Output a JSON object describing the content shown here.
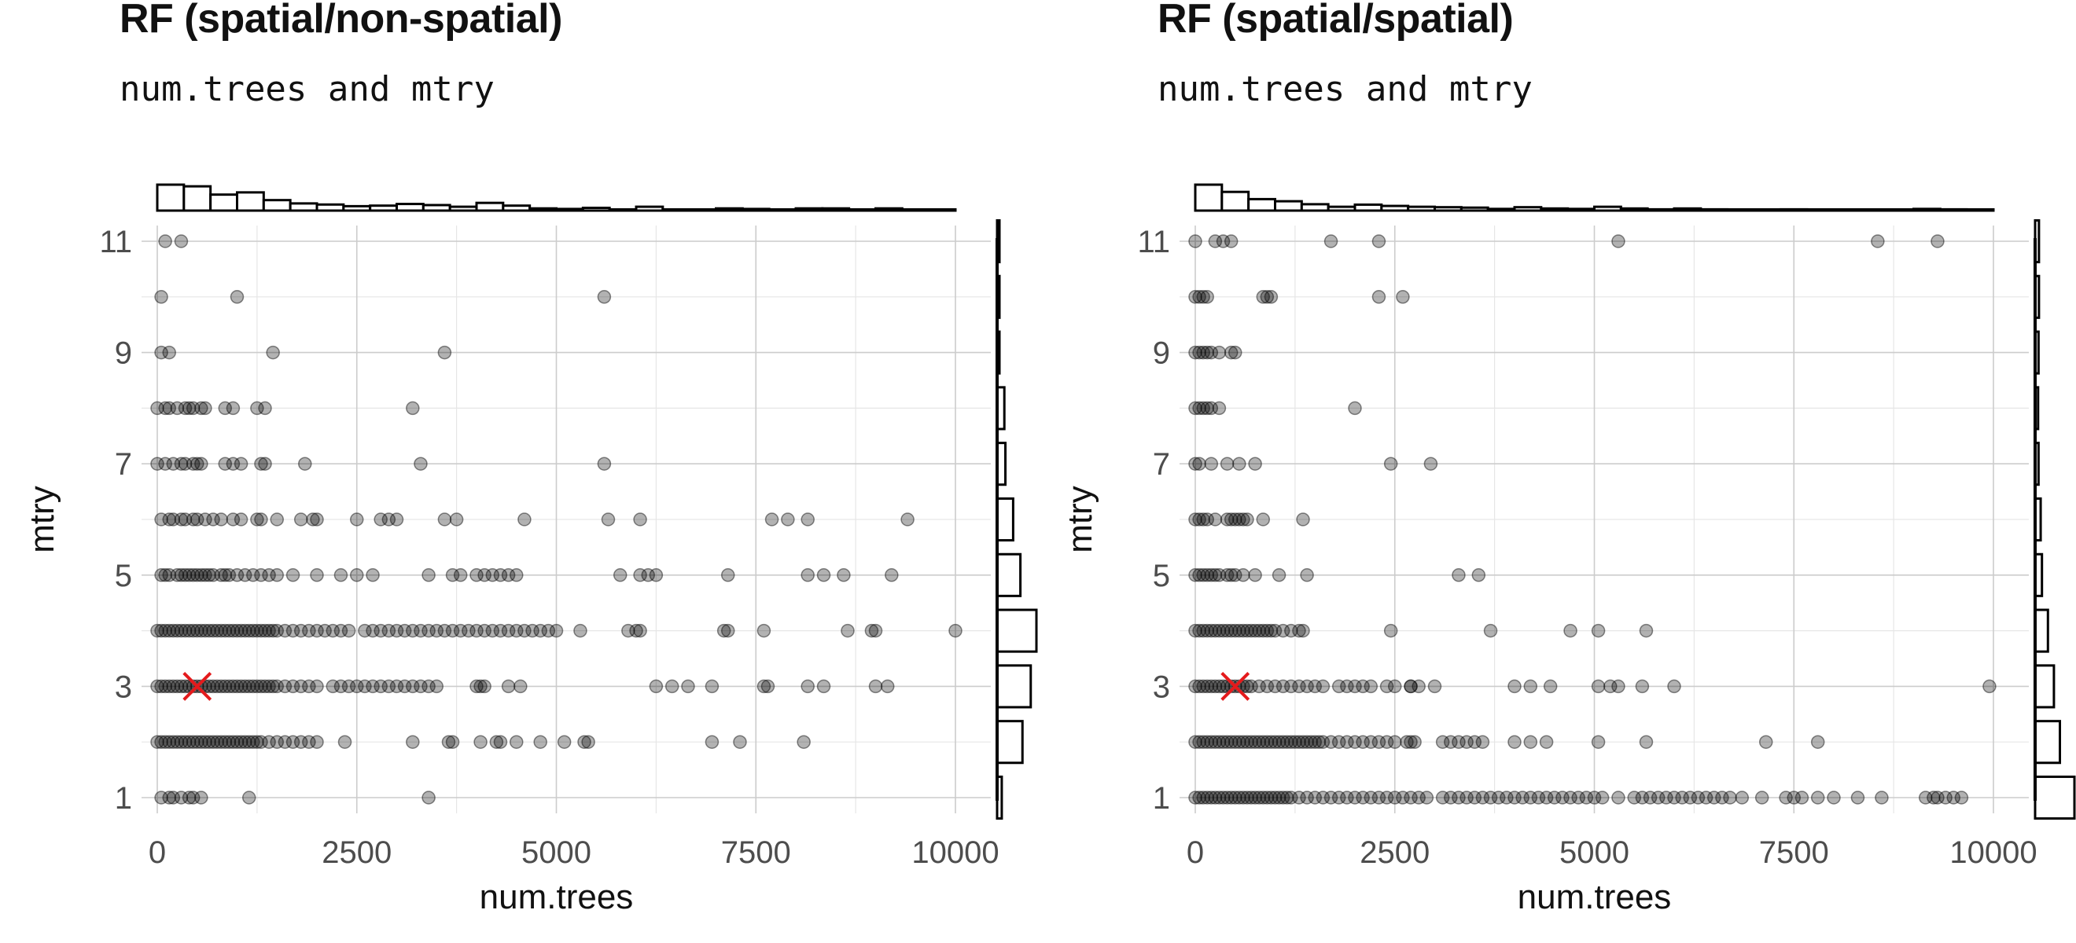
{
  "panels": [
    {
      "title": "RF (spatial/non-spatial)",
      "subtitle": "num.trees and mtry"
    },
    {
      "title": "RF (spatial/spatial)",
      "subtitle": "num.trees and mtry"
    }
  ],
  "colors": {
    "points": "#000000",
    "best_marker": "#e41a1c",
    "grid": "#cccccc",
    "background": "#ffffff"
  },
  "chart_data": [
    {
      "type": "scatter",
      "title": "RF (spatial/non-spatial)",
      "subtitle": "num.trees and mtry",
      "xlabel": "num.trees",
      "ylabel": "mtry",
      "xlim": [
        0,
        10000
      ],
      "ylim": [
        1,
        11
      ],
      "x_ticks": [
        0,
        2500,
        5000,
        7500,
        10000
      ],
      "y_ticks": [
        1,
        3,
        5,
        7,
        9,
        11
      ],
      "grid": true,
      "marginal_histograms": [
        "top",
        "right"
      ],
      "best": {
        "x": 500,
        "y": 3
      },
      "points": [
        {
          "y": 11,
          "x": [
            100,
            300
          ]
        },
        {
          "y": 10,
          "x": [
            50,
            1000,
            5600
          ]
        },
        {
          "y": 9,
          "x": [
            50,
            150,
            1450,
            3600
          ]
        },
        {
          "y": 8,
          "x": [
            0,
            100,
            150,
            250,
            350,
            400,
            450,
            550,
            600,
            850,
            950,
            1250,
            1350,
            3200
          ]
        },
        {
          "y": 7,
          "x": [
            0,
            100,
            200,
            300,
            350,
            450,
            500,
            550,
            850,
            950,
            1050,
            1300,
            1350,
            1850,
            3300,
            5600
          ]
        },
        {
          "y": 6,
          "x": [
            50,
            150,
            200,
            300,
            350,
            450,
            500,
            600,
            700,
            800,
            950,
            1050,
            1250,
            1300,
            1500,
            1800,
            1950,
            2000,
            2500,
            2800,
            2900,
            3000,
            3600,
            3750,
            4600,
            5650,
            6050,
            7700,
            7900,
            8150,
            9400
          ]
        },
        {
          "y": 5,
          "x": [
            50,
            100,
            150,
            250,
            300,
            350,
            400,
            450,
            500,
            550,
            600,
            650,
            700,
            800,
            850,
            900,
            1000,
            1100,
            1200,
            1300,
            1400,
            1500,
            1700,
            2000,
            2300,
            2500,
            2700,
            3400,
            3700,
            3800,
            4000,
            4100,
            4200,
            4300,
            4400,
            4500,
            5800,
            6050,
            6150,
            6250,
            7150,
            8150,
            8350,
            8600,
            9200
          ]
        },
        {
          "y": 4,
          "x": [
            0,
            50,
            100,
            150,
            200,
            250,
            300,
            350,
            400,
            450,
            500,
            550,
            600,
            650,
            700,
            750,
            800,
            850,
            900,
            950,
            1000,
            1050,
            1100,
            1150,
            1200,
            1250,
            1300,
            1350,
            1400,
            1450,
            1500,
            1600,
            1700,
            1800,
            1900,
            2000,
            2100,
            2200,
            2300,
            2400,
            2600,
            2700,
            2800,
            2900,
            3000,
            3100,
            3200,
            3300,
            3400,
            3500,
            3600,
            3700,
            3800,
            3900,
            4000,
            4100,
            4200,
            4300,
            4400,
            4500,
            4600,
            4700,
            4800,
            4900,
            5000,
            5300,
            5900,
            6000,
            6050,
            7100,
            7150,
            7600,
            8650,
            8950,
            9000,
            10000
          ]
        },
        {
          "y": 3,
          "x": [
            0,
            50,
            100,
            150,
            200,
            250,
            300,
            350,
            400,
            450,
            500,
            550,
            600,
            650,
            700,
            750,
            800,
            850,
            900,
            950,
            1000,
            1050,
            1100,
            1150,
            1200,
            1250,
            1300,
            1350,
            1400,
            1450,
            1500,
            1600,
            1700,
            1800,
            1900,
            2000,
            2200,
            2300,
            2400,
            2500,
            2600,
            2700,
            2800,
            2900,
            3000,
            3100,
            3200,
            3300,
            3400,
            3500,
            4000,
            4050,
            4100,
            4400,
            4550,
            6250,
            6450,
            6650,
            6950,
            7600,
            7650,
            8150,
            8350,
            9000,
            9150
          ]
        },
        {
          "y": 2,
          "x": [
            0,
            50,
            100,
            150,
            200,
            250,
            300,
            350,
            400,
            450,
            500,
            550,
            600,
            650,
            700,
            750,
            800,
            850,
            900,
            950,
            1000,
            1050,
            1100,
            1150,
            1200,
            1250,
            1300,
            1400,
            1500,
            1600,
            1700,
            1800,
            1900,
            2000,
            2350,
            3200,
            3650,
            3700,
            4050,
            4250,
            4300,
            4500,
            4800,
            5100,
            5350,
            5400,
            6950,
            7300,
            8100
          ]
        },
        {
          "y": 1,
          "x": [
            50,
            150,
            200,
            300,
            400,
            450,
            550,
            1150,
            3400
          ]
        }
      ]
    },
    {
      "type": "scatter",
      "title": "RF (spatial/spatial)",
      "subtitle": "num.trees and mtry",
      "xlabel": "num.trees",
      "ylabel": "mtry",
      "xlim": [
        0,
        10000
      ],
      "ylim": [
        1,
        11
      ],
      "x_ticks": [
        0,
        2500,
        5000,
        7500,
        10000
      ],
      "y_ticks": [
        1,
        3,
        5,
        7,
        9,
        11
      ],
      "grid": true,
      "marginal_histograms": [
        "top",
        "right"
      ],
      "best": {
        "x": 500,
        "y": 3
      },
      "points": [
        {
          "y": 11,
          "x": [
            0,
            250,
            350,
            450,
            1700,
            2300,
            5300,
            8550,
            9300
          ]
        },
        {
          "y": 10,
          "x": [
            0,
            50,
            100,
            150,
            850,
            900,
            950,
            2300,
            2600
          ]
        },
        {
          "y": 9,
          "x": [
            0,
            50,
            100,
            150,
            200,
            300,
            450,
            500
          ]
        },
        {
          "y": 8,
          "x": [
            0,
            50,
            100,
            150,
            200,
            300,
            2000
          ]
        },
        {
          "y": 7,
          "x": [
            0,
            50,
            200,
            400,
            550,
            750,
            2450,
            2950
          ]
        },
        {
          "y": 6,
          "x": [
            0,
            50,
            100,
            150,
            250,
            400,
            450,
            500,
            550,
            600,
            650,
            850,
            1350
          ]
        },
        {
          "y": 5,
          "x": [
            0,
            50,
            100,
            150,
            200,
            250,
            300,
            400,
            450,
            500,
            600,
            750,
            1050,
            1400,
            3300,
            3550
          ]
        },
        {
          "y": 4,
          "x": [
            0,
            50,
            100,
            150,
            200,
            250,
            300,
            350,
            400,
            450,
            500,
            550,
            600,
            650,
            700,
            750,
            800,
            850,
            900,
            950,
            1000,
            1100,
            1200,
            1300,
            1350,
            2450,
            3700,
            4700,
            5050,
            5650
          ]
        },
        {
          "y": 3,
          "x": [
            0,
            50,
            100,
            150,
            200,
            250,
            300,
            350,
            400,
            450,
            500,
            550,
            600,
            650,
            700,
            800,
            900,
            1000,
            1100,
            1200,
            1300,
            1400,
            1500,
            1600,
            1800,
            1900,
            2000,
            2100,
            2200,
            2400,
            2500,
            2700,
            2700,
            2800,
            3000,
            4000,
            4200,
            4450,
            5050,
            5200,
            5300,
            5600,
            6000,
            9950
          ]
        },
        {
          "y": 2,
          "x": [
            0,
            50,
            100,
            150,
            200,
            250,
            300,
            350,
            400,
            450,
            500,
            550,
            600,
            650,
            700,
            750,
            800,
            850,
            900,
            950,
            1000,
            1050,
            1100,
            1150,
            1200,
            1250,
            1300,
            1350,
            1400,
            1450,
            1500,
            1550,
            1600,
            1700,
            1800,
            1900,
            2000,
            2100,
            2200,
            2300,
            2400,
            2500,
            2650,
            2700,
            2750,
            3100,
            3200,
            3300,
            3400,
            3500,
            3600,
            4000,
            4200,
            4400,
            5050,
            5650,
            7150,
            7800
          ]
        },
        {
          "y": 1,
          "x": [
            0,
            50,
            100,
            150,
            200,
            250,
            300,
            350,
            400,
            450,
            500,
            550,
            600,
            650,
            700,
            750,
            800,
            850,
            900,
            950,
            1000,
            1050,
            1100,
            1150,
            1200,
            1300,
            1400,
            1500,
            1600,
            1700,
            1800,
            1900,
            2000,
            2100,
            2200,
            2300,
            2400,
            2500,
            2600,
            2700,
            2800,
            2900,
            3100,
            3200,
            3300,
            3400,
            3500,
            3600,
            3700,
            3800,
            3900,
            4000,
            4100,
            4200,
            4300,
            4400,
            4500,
            4600,
            4700,
            4800,
            4900,
            5000,
            5100,
            5300,
            5500,
            5600,
            5700,
            5800,
            5900,
            6000,
            6100,
            6200,
            6300,
            6400,
            6500,
            6600,
            6700,
            6850,
            7100,
            7400,
            7500,
            7600,
            7800,
            8000,
            8300,
            8600,
            9150,
            9250,
            9300,
            9400,
            9500,
            9600
          ]
        }
      ]
    }
  ]
}
